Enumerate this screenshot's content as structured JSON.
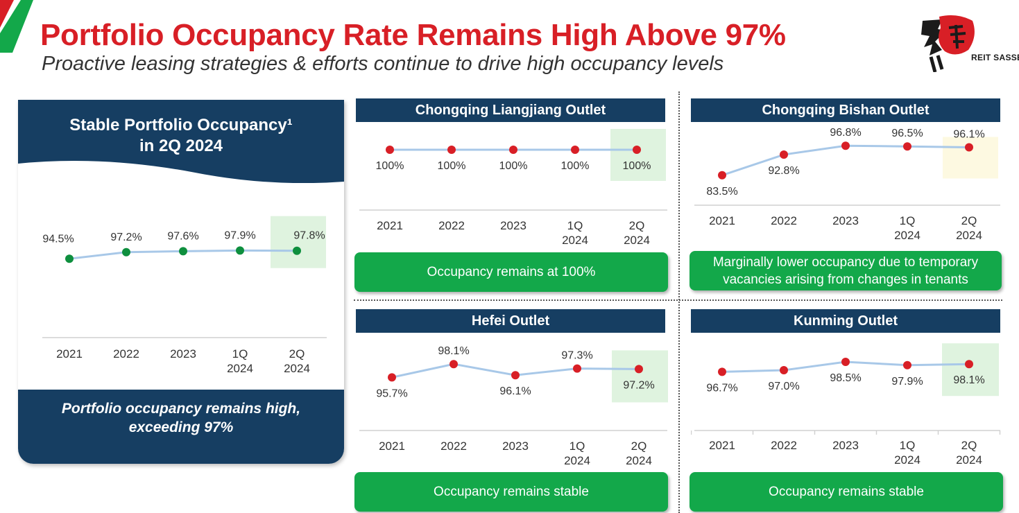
{
  "header": {
    "title": "Portfolio Occupancy Rate Remains High Above 97%",
    "subtitle": "Proactive leasing strategies & efforts continue to drive high occupancy levels"
  },
  "logo": {
    "text": "REIT SASSEUR",
    "accent_color": "#d81f26"
  },
  "colors": {
    "navy": "#163e62",
    "red": "#d81f26",
    "green": "#13a84a",
    "line": "#a8c8e8",
    "highlight_green": "#dff3df",
    "highlight_yellow": "#fdf9e1"
  },
  "portfolio": {
    "heading_line1": "Stable Portfolio Occupancy¹",
    "heading_line2": "in 2Q 2024",
    "note_line1": "Portfolio occupancy remains high,",
    "note_line2": "exceeding 97%"
  },
  "panels": {
    "liangjiang": {
      "title": "Chongqing Liangjiang Outlet",
      "note": "Occupancy remains at 100%"
    },
    "bishan": {
      "title": "Chongqing Bishan Outlet",
      "note_line1": "Marginally lower occupancy due to temporary",
      "note_line2": "vacancies arising from changes in tenants"
    },
    "hefei": {
      "title": "Hefei Outlet",
      "note": "Occupancy remains stable"
    },
    "kunming": {
      "title": "Kunming Outlet",
      "note": "Occupancy remains stable"
    }
  },
  "chart_data": [
    {
      "type": "line",
      "name": "portfolio",
      "categories": [
        "2021",
        "2022",
        "2023",
        "1Q\n2024",
        "2Q\n2024"
      ],
      "values": [
        94.5,
        97.2,
        97.6,
        97.9,
        97.8
      ],
      "labels": [
        "94.5%",
        "97.2%",
        "97.6%",
        "97.9%",
        "97.8%"
      ],
      "ylim": [
        90,
        100
      ],
      "point_color": "#0e8f3e",
      "highlight": {
        "index": 4,
        "color": "#dff3df"
      }
    },
    {
      "type": "line",
      "name": "liangjiang",
      "categories": [
        "2021",
        "2022",
        "2023",
        "1Q\n2024",
        "2Q\n2024"
      ],
      "values": [
        100,
        100,
        100,
        100,
        100
      ],
      "labels": [
        "100%",
        "100%",
        "100%",
        "100%",
        "100%"
      ],
      "ylim": [
        80,
        100
      ],
      "point_color": "#d81f26",
      "highlight": {
        "index": 4,
        "color": "#dff3df"
      }
    },
    {
      "type": "line",
      "name": "bishan",
      "categories": [
        "2021",
        "2022",
        "2023",
        "1Q\n2024",
        "2Q\n2024"
      ],
      "values": [
        83.5,
        92.8,
        96.8,
        96.5,
        96.1
      ],
      "labels": [
        "83.5%",
        "92.8%",
        "96.8%",
        "96.5%",
        "96.1%"
      ],
      "ylim": [
        80,
        100
      ],
      "point_color": "#d81f26",
      "highlight": {
        "index": 4,
        "color": "#fdf9e1"
      }
    },
    {
      "type": "line",
      "name": "hefei",
      "categories": [
        "2021",
        "2022",
        "2023",
        "1Q\n2024",
        "2Q\n2024"
      ],
      "values": [
        95.7,
        98.1,
        96.1,
        97.3,
        97.2
      ],
      "labels": [
        "95.7%",
        "98.1%",
        "96.1%",
        "97.3%",
        "97.2%"
      ],
      "ylim": [
        80,
        100
      ],
      "point_color": "#d81f26",
      "highlight": {
        "index": 4,
        "color": "#dff3df"
      }
    },
    {
      "type": "line",
      "name": "kunming",
      "categories": [
        "2021",
        "2022",
        "2023",
        "1Q\n2024",
        "2Q\n2024"
      ],
      "values": [
        96.7,
        97.0,
        98.5,
        97.9,
        98.1
      ],
      "labels": [
        "96.7%",
        "97.0%",
        "98.5%",
        "97.9%",
        "98.1%"
      ],
      "ylim": [
        80,
        100
      ],
      "point_color": "#d81f26",
      "highlight": {
        "index": 4,
        "color": "#dff3df"
      }
    }
  ]
}
